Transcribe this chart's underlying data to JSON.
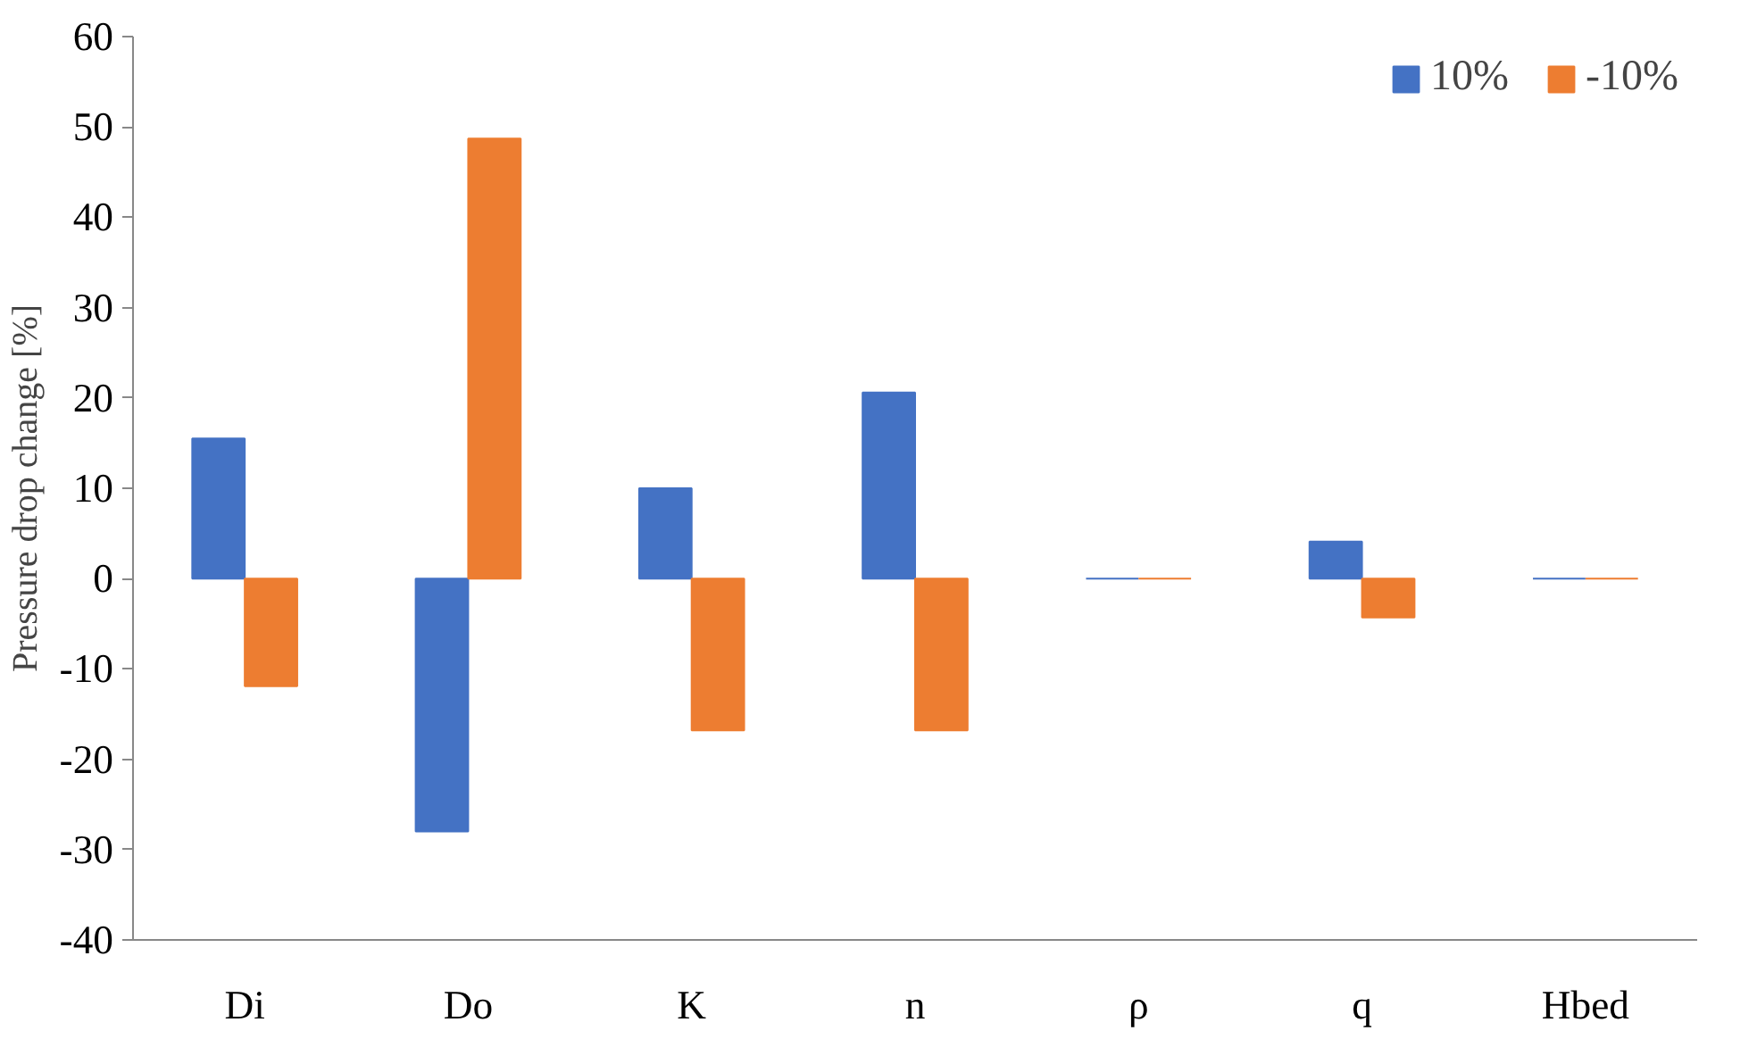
{
  "chart_data": {
    "type": "bar",
    "ylabel": "Pressure drop change [%]",
    "categories": [
      "Di",
      "Do",
      "K",
      "n",
      "ρ",
      "q",
      "Hbed"
    ],
    "series": [
      {
        "name": "10%",
        "color": "#4472c4",
        "values": [
          15.5,
          -28,
          10,
          20.6,
          0,
          4.1,
          0
        ]
      },
      {
        "name": "-10%",
        "color": "#ed7d31",
        "values": [
          -11.9,
          48.7,
          -16.8,
          -16.8,
          0,
          -4.3,
          0
        ]
      }
    ],
    "ylim": [
      -40,
      60
    ],
    "yticks": [
      -40,
      -30,
      -20,
      -10,
      0,
      10,
      20,
      30,
      40,
      50,
      60
    ],
    "grid": false,
    "legend": "top right"
  }
}
